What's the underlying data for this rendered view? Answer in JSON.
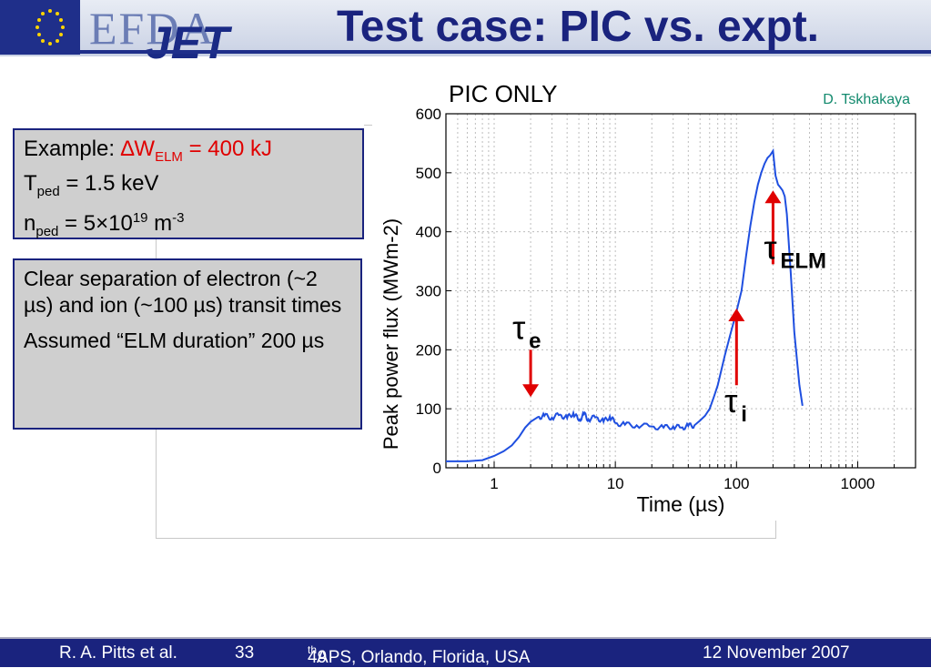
{
  "slide": {
    "title": "Test case: PIC vs. expt.",
    "logo_efda": "EFDA",
    "logo_jet": "JET",
    "panel_title": "PIC ONLY",
    "credit": "D. Tskhakaya"
  },
  "box1": {
    "example_label": "Example: ",
    "delta_w": "∆W",
    "elm_sub": "ELM",
    "delta_w_value": " = 400 kJ",
    "t_sym": "T",
    "t_sub": "ped",
    "t_value": " = 1.5 keV",
    "n_sym": "n",
    "n_sub": "ped",
    "n_value_a": " = 5×10",
    "n_exp": "19",
    "n_value_b": " m",
    "n_unit_exp": "-3"
  },
  "box2": {
    "line1": "Clear separation of electron (~2 µs) and ion (~100 µs) transit times",
    "line2": "Assumed “ELM duration” 200 µs"
  },
  "footer": {
    "author": "R. A. Pitts et al.",
    "page": "33",
    "conf_a": "49",
    "conf_sup": "th",
    "conf_b": " APS, Orlando, Florida, USA",
    "date": "12 November 2007"
  },
  "colors": {
    "curve": "#1f4fe0",
    "arrow": "#e00000",
    "title": "#1a237e",
    "credit": "#138a6e"
  },
  "chart_data": {
    "type": "line",
    "title": "",
    "xlabel": "Time (µs)",
    "ylabel": "Peak power flux (MWm-2)",
    "xscale": "log",
    "xlim": [
      0.4,
      3000
    ],
    "ylim": [
      0,
      600
    ],
    "xticks": [
      1,
      10,
      100,
      1000
    ],
    "xtick_labels": [
      "1",
      "10",
      "100",
      "1000"
    ],
    "yticks": [
      0,
      100,
      200,
      300,
      400,
      500,
      600
    ],
    "ytick_labels": [
      "0",
      "100",
      "200",
      "300",
      "400",
      "500",
      "600"
    ],
    "grid": true,
    "series": [
      {
        "x": [
          0.4,
          0.6,
          0.8,
          1.0,
          1.2,
          1.4,
          1.6,
          1.8,
          2.0,
          2.3,
          2.6,
          3.0,
          3.5,
          4.0,
          4.5,
          5.0,
          5.5,
          6.0,
          7.0,
          8.0,
          9.0,
          10,
          12,
          15,
          20,
          25,
          30,
          35,
          40,
          45,
          50,
          55,
          60,
          65,
          70,
          80,
          90,
          100,
          110,
          120,
          130,
          140,
          150,
          160,
          170,
          180,
          190,
          200,
          210,
          220,
          230,
          240,
          250,
          260,
          280,
          300,
          330,
          350
        ],
        "y": [
          11,
          11,
          13,
          20,
          28,
          38,
          52,
          68,
          78,
          86,
          88,
          85,
          90,
          84,
          93,
          80,
          91,
          82,
          86,
          78,
          87,
          76,
          73,
          72,
          70,
          68,
          70,
          68,
          71,
          72,
          80,
          88,
          100,
          120,
          140,
          190,
          230,
          265,
          300,
          360,
          410,
          450,
          480,
          500,
          515,
          525,
          530,
          537,
          495,
          480,
          475,
          470,
          460,
          430,
          330,
          230,
          140,
          105
        ]
      }
    ],
    "annotations": [
      {
        "symbol": "τ",
        "sub": "e",
        "x": 2.0,
        "arrow_from_y": 200,
        "arrow_to_y": 120
      },
      {
        "symbol": "τ",
        "sub": "i",
        "x": 100,
        "arrow_from_y": 140,
        "arrow_to_y": 270
      },
      {
        "symbol": "τ",
        "sub": "ELM",
        "x": 200,
        "arrow_from_y": 345,
        "arrow_to_y": 470
      }
    ]
  }
}
